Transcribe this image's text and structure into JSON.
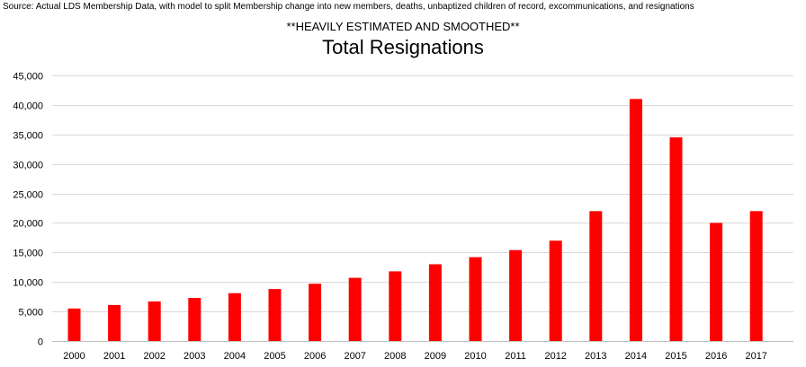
{
  "source_note": "Source: Actual LDS Membership Data, with model to split Membership change into new members, deaths, unbaptized children of record, excommunications, and resignations",
  "chart_data": {
    "type": "bar",
    "subtitle": "**HEAVILY ESTIMATED AND SMOOTHED**",
    "title": "Total Resignations",
    "xlabel": "",
    "ylabel": "",
    "categories": [
      "2000",
      "2001",
      "2002",
      "2003",
      "2004",
      "2005",
      "2006",
      "2007",
      "2008",
      "2009",
      "2010",
      "2011",
      "2012",
      "2013",
      "2014",
      "2015",
      "2016",
      "2017"
    ],
    "values": [
      5500,
      6100,
      6700,
      7300,
      8100,
      8800,
      9700,
      10700,
      11800,
      13000,
      14200,
      15400,
      17000,
      22000,
      41000,
      34500,
      20000,
      22000
    ],
    "ylim": [
      0,
      45000
    ],
    "yticks": [
      0,
      5000,
      10000,
      15000,
      20000,
      25000,
      30000,
      35000,
      40000,
      45000
    ],
    "ytick_labels": [
      "0",
      "5,000",
      "10,000",
      "15,000",
      "20,000",
      "25,000",
      "30,000",
      "35,000",
      "40,000",
      "45,000"
    ],
    "grid": true,
    "bar_color": "#ff0000",
    "grid_color": "#d9d9d9"
  }
}
